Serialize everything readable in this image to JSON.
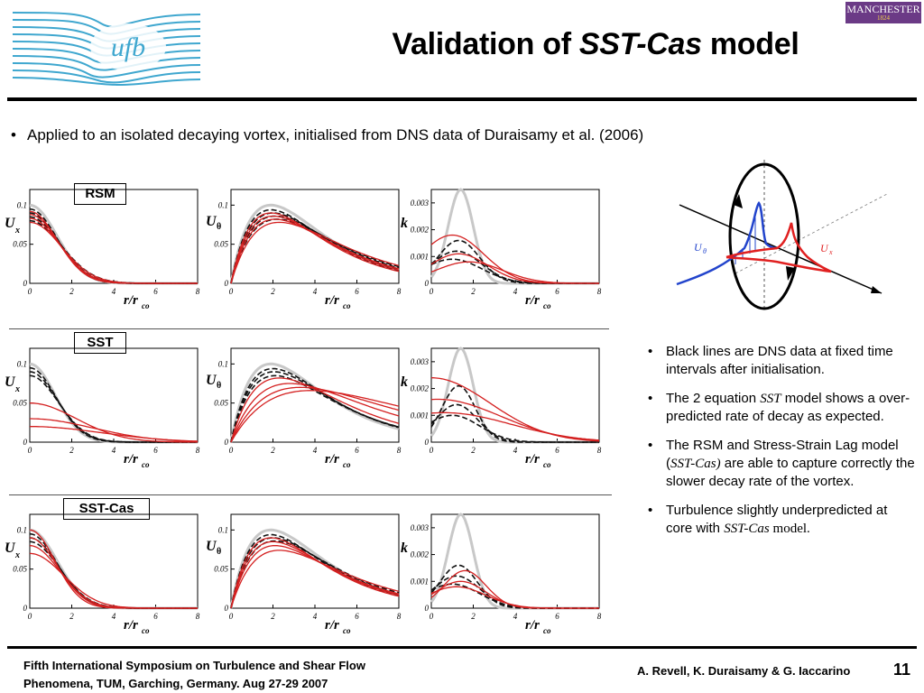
{
  "header": {
    "title_prefix": "Validation of ",
    "title_italic": "SST-Cas",
    "title_suffix": " model",
    "logo_text": "ufb",
    "manchester_logo": "MANCHESTER",
    "manchester_year": "1824"
  },
  "intro": {
    "bullet": "•",
    "text": "Applied to an isolated decaying vortex, initialised from DNS data of Duraisamy et al. (2006)"
  },
  "rows": [
    {
      "label": "RSM"
    },
    {
      "label": "SST"
    },
    {
      "label": "SST-Cas"
    }
  ],
  "axes": {
    "ux_label": "U",
    "ux_sub": "x",
    "ut_label": "U",
    "ut_sub": "θ",
    "k_label": "k",
    "x_label": "r/r",
    "x_sub": "co",
    "u_ticks": [
      "0.1",
      "0.05",
      "0"
    ],
    "k_ticks": [
      "0.003",
      "0.002",
      "0.001",
      "0"
    ],
    "x_ticks": [
      "0",
      "2",
      "4",
      "6",
      "8"
    ]
  },
  "schematic": {
    "ut_label": "U",
    "ut_sub": "θ",
    "ux_label": "U",
    "ux_sub": "x"
  },
  "bullets": {
    "marker": "•",
    "b1": "Black lines are DNS data at fixed time intervals after initialisation.",
    "b2_pre": "The 2 equation ",
    "b2_it": "SST",
    "b2_post": " model shows a over-predicted rate of decay as expected.",
    "b3_pre": "The RSM and Stress-Strain Lag model (",
    "b3_it": "SST-Cas)",
    "b3_post": " are able to capture correctly the slower decay rate of the vortex.",
    "b4_pre": "Turbulence slightly underpredicted at core with ",
    "b4_it": "SST-Cas",
    "b4_post": " model."
  },
  "footer": {
    "left_line1": "Fifth International Symposium on Turbulence and Shear Flow",
    "left_line2": "Phenomena, TUM, Garching, Germany. Aug 27-29 2007",
    "authors": "A. Revell, K. Duraisamy & G. Iaccarino",
    "page": "11"
  },
  "colors": {
    "dns": "#111111",
    "model": "#d42020",
    "initial": "#c8c8c8",
    "logo_lines": "#3fa7cf",
    "vortex_blue": "#2244cc"
  }
}
